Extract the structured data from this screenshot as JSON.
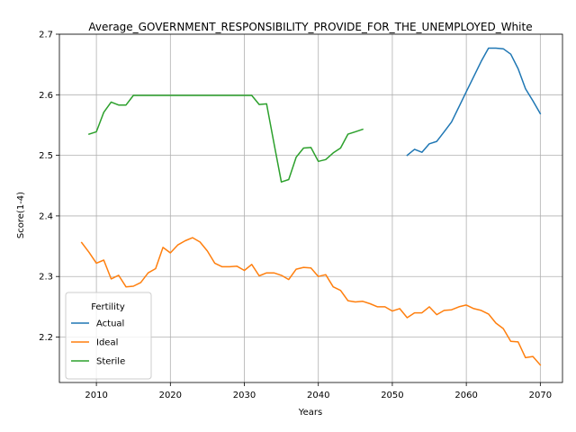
{
  "chart_data": {
    "type": "line",
    "title": "Average_GOVERNMENT_RESPONSIBILITY_PROVIDE_FOR_THE_UNEMPLOYED_White",
    "xlabel": "Years",
    "ylabel": "Score(1-4)",
    "xlim": [
      2005,
      2073
    ],
    "ylim": [
      2.125,
      2.7
    ],
    "xticks": [
      2010,
      2020,
      2030,
      2040,
      2050,
      2060,
      2070
    ],
    "yticks": [
      2.2,
      2.3,
      2.4,
      2.5,
      2.6,
      2.7
    ],
    "grid": true,
    "legend": {
      "title": "Fertility",
      "placement": "lower-left"
    },
    "series": [
      {
        "name": "Actual",
        "color": "#1f77b4",
        "points": [
          [
            2052,
            2.5
          ],
          [
            2053,
            2.51
          ],
          [
            2054,
            2.505
          ],
          [
            2055,
            2.519
          ],
          [
            2056,
            2.523
          ],
          [
            2057,
            2.539
          ],
          [
            2058,
            2.555
          ],
          [
            2059,
            2.58
          ],
          [
            2060,
            2.605
          ],
          [
            2061,
            2.63
          ],
          [
            2062,
            2.655
          ],
          [
            2063,
            2.677
          ],
          [
            2064,
            2.677
          ],
          [
            2065,
            2.676
          ],
          [
            2066,
            2.667
          ],
          [
            2067,
            2.643
          ],
          [
            2068,
            2.61
          ],
          [
            2069,
            2.59
          ],
          [
            2070,
            2.569
          ]
        ]
      },
      {
        "name": "Ideal",
        "color": "#ff7f0e",
        "points": [
          [
            2008,
            2.356
          ],
          [
            2009,
            2.34
          ],
          [
            2010,
            2.322
          ],
          [
            2011,
            2.327
          ],
          [
            2012,
            2.296
          ],
          [
            2013,
            2.302
          ],
          [
            2014,
            2.283
          ],
          [
            2015,
            2.284
          ],
          [
            2016,
            2.29
          ],
          [
            2017,
            2.306
          ],
          [
            2018,
            2.313
          ],
          [
            2019,
            2.348
          ],
          [
            2020,
            2.339
          ],
          [
            2021,
            2.352
          ],
          [
            2022,
            2.359
          ],
          [
            2023,
            2.364
          ],
          [
            2024,
            2.357
          ],
          [
            2025,
            2.342
          ],
          [
            2026,
            2.322
          ],
          [
            2027,
            2.316
          ],
          [
            2028,
            2.316
          ],
          [
            2029,
            2.317
          ],
          [
            2030,
            2.31
          ],
          [
            2031,
            2.32
          ],
          [
            2032,
            2.301
          ],
          [
            2033,
            2.306
          ],
          [
            2034,
            2.306
          ],
          [
            2035,
            2.302
          ],
          [
            2036,
            2.295
          ],
          [
            2037,
            2.312
          ],
          [
            2038,
            2.315
          ],
          [
            2039,
            2.314
          ],
          [
            2040,
            2.3
          ],
          [
            2041,
            2.303
          ],
          [
            2042,
            2.283
          ],
          [
            2043,
            2.277
          ],
          [
            2044,
            2.26
          ],
          [
            2045,
            2.258
          ],
          [
            2046,
            2.259
          ],
          [
            2047,
            2.255
          ],
          [
            2048,
            2.25
          ],
          [
            2049,
            2.25
          ],
          [
            2050,
            2.243
          ],
          [
            2051,
            2.247
          ],
          [
            2052,
            2.232
          ],
          [
            2053,
            2.24
          ],
          [
            2054,
            2.24
          ],
          [
            2055,
            2.25
          ],
          [
            2056,
            2.237
          ],
          [
            2057,
            2.244
          ],
          [
            2058,
            2.245
          ],
          [
            2059,
            2.25
          ],
          [
            2060,
            2.253
          ],
          [
            2061,
            2.247
          ],
          [
            2062,
            2.244
          ],
          [
            2063,
            2.238
          ],
          [
            2064,
            2.223
          ],
          [
            2065,
            2.214
          ],
          [
            2066,
            2.193
          ],
          [
            2067,
            2.192
          ],
          [
            2068,
            2.166
          ],
          [
            2069,
            2.168
          ],
          [
            2070,
            2.154
          ]
        ]
      },
      {
        "name": "Sterile",
        "color": "#2ca02c",
        "points": [
          [
            2009,
            2.535
          ],
          [
            2010,
            2.539
          ],
          [
            2011,
            2.571
          ],
          [
            2012,
            2.588
          ],
          [
            2013,
            2.583
          ],
          [
            2014,
            2.583
          ],
          [
            2015,
            2.599
          ],
          [
            2016,
            2.599
          ],
          [
            2017,
            2.599
          ],
          [
            2018,
            2.599
          ],
          [
            2019,
            2.599
          ],
          [
            2020,
            2.599
          ],
          [
            2021,
            2.599
          ],
          [
            2022,
            2.599
          ],
          [
            2023,
            2.599
          ],
          [
            2024,
            2.599
          ],
          [
            2025,
            2.599
          ],
          [
            2026,
            2.599
          ],
          [
            2027,
            2.599
          ],
          [
            2028,
            2.599
          ],
          [
            2029,
            2.599
          ],
          [
            2030,
            2.599
          ],
          [
            2031,
            2.599
          ],
          [
            2032,
            2.584
          ],
          [
            2033,
            2.585
          ],
          [
            2034,
            2.52
          ],
          [
            2035,
            2.456
          ],
          [
            2036,
            2.46
          ],
          [
            2037,
            2.497
          ],
          [
            2038,
            2.512
          ],
          [
            2039,
            2.513
          ],
          [
            2040,
            2.49
          ],
          [
            2041,
            2.493
          ],
          [
            2042,
            2.504
          ],
          [
            2043,
            2.512
          ],
          [
            2044,
            2.535
          ],
          [
            2045,
            2.539
          ],
          [
            2046,
            2.543
          ]
        ]
      }
    ]
  }
}
